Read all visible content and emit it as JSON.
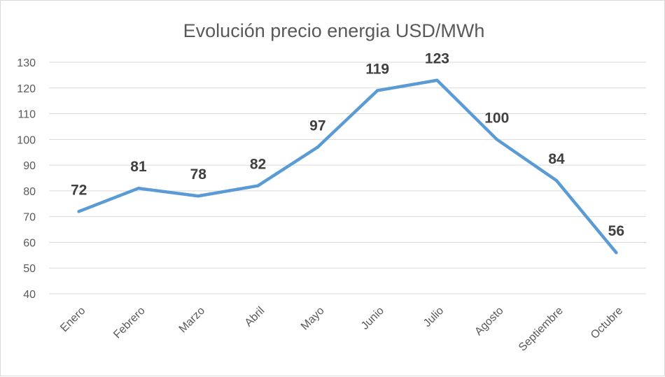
{
  "chart_data": {
    "type": "line",
    "title": "Evolución precio energia USD/MWh",
    "categories": [
      "Enero",
      "Febrero",
      "Marzo",
      "Abril",
      "Mayo",
      "Junio",
      "Julio",
      "Agosto",
      "Septiembre",
      "Octubre"
    ],
    "series": [
      {
        "name": "Precio energia USD/MWh",
        "values": [
          72,
          81,
          78,
          82,
          97,
          119,
          123,
          100,
          84,
          56
        ],
        "color": "#5b9bd5"
      }
    ],
    "ylim": [
      40,
      130
    ],
    "yticks": [
      40,
      50,
      60,
      70,
      80,
      90,
      100,
      110,
      120,
      130
    ],
    "xlabel": "",
    "ylabel": "",
    "grid": true,
    "legend": "none",
    "data_labels": true
  }
}
